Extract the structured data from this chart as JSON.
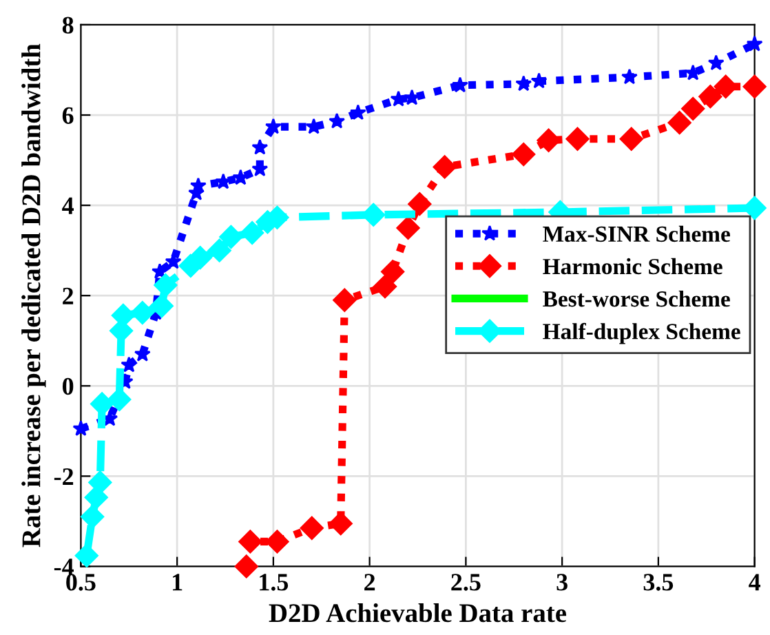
{
  "chart_data": {
    "type": "line",
    "xlabel": "D2D Achievable Data rate",
    "ylabel": "Rate increase per dedicated D2D bandwidth",
    "xlim": [
      0.5,
      4
    ],
    "xticks": [
      0.5,
      1,
      1.5,
      2,
      2.5,
      3,
      3.5,
      4
    ],
    "ylim": [
      -4,
      8
    ],
    "yticks": [
      -4,
      -2,
      0,
      2,
      4,
      6,
      8
    ],
    "grid": true,
    "legend": "right",
    "series": [
      {
        "name": "Max-SINR Scheme",
        "color": "#0000ff",
        "marker": "star",
        "line_style": "dotted",
        "x": [
          0.5,
          0.65,
          0.73,
          0.75,
          0.82,
          0.89,
          0.91,
          0.98,
          1.1,
          1.11,
          1.24,
          1.33,
          1.43,
          1.43,
          1.5,
          1.71,
          1.83,
          1.94,
          2.15,
          2.22,
          2.47,
          2.8,
          2.88,
          3.35,
          3.68,
          3.8,
          4.0
        ],
        "values": [
          -0.95,
          -0.73,
          0.09,
          0.46,
          0.7,
          1.62,
          2.53,
          2.75,
          4.27,
          4.43,
          4.52,
          4.61,
          4.8,
          5.28,
          5.74,
          5.74,
          5.86,
          6.05,
          6.35,
          6.38,
          6.66,
          6.69,
          6.75,
          6.84,
          6.93,
          7.15,
          7.57
        ]
      },
      {
        "name": "Harmonic Scheme",
        "color": "#ff0000",
        "marker": "diamond",
        "line_style": "dotted",
        "x": [
          1.36,
          1.38,
          1.52,
          1.7,
          1.85,
          1.87,
          2.08,
          2.12,
          2.2,
          2.26,
          2.39,
          2.8,
          2.93,
          3.08,
          3.36,
          3.61,
          3.68,
          3.77,
          3.85,
          4.0
        ],
        "values": [
          -4,
          -3.45,
          -3.45,
          -3.15,
          -3.05,
          1.9,
          2.2,
          2.53,
          3.5,
          4.03,
          4.85,
          5.13,
          5.44,
          5.47,
          5.47,
          5.83,
          6.14,
          6.41,
          6.63,
          6.63
        ]
      },
      {
        "name": "Best-worse Scheme",
        "color": "#00ff00",
        "marker": "none",
        "line_style": "solid"
      },
      {
        "name": "Half-duplex Scheme",
        "color": "#00ffff",
        "marker": "diamond",
        "line_style": "dashed",
        "x": [
          0.53,
          0.56,
          0.58,
          0.6,
          0.61,
          0.7,
          0.71,
          0.72,
          0.82,
          0.92,
          0.94,
          1.07,
          1.12,
          1.22,
          1.28,
          1.39,
          1.47,
          1.52,
          2.02,
          2.99,
          4.0
        ],
        "values": [
          -3.76,
          -2.9,
          -2.47,
          -2.14,
          -0.4,
          -0.3,
          1.22,
          1.56,
          1.62,
          1.77,
          2.23,
          2.66,
          2.84,
          3.0,
          3.3,
          3.39,
          3.63,
          3.73,
          3.79,
          3.85,
          3.94
        ]
      }
    ]
  }
}
